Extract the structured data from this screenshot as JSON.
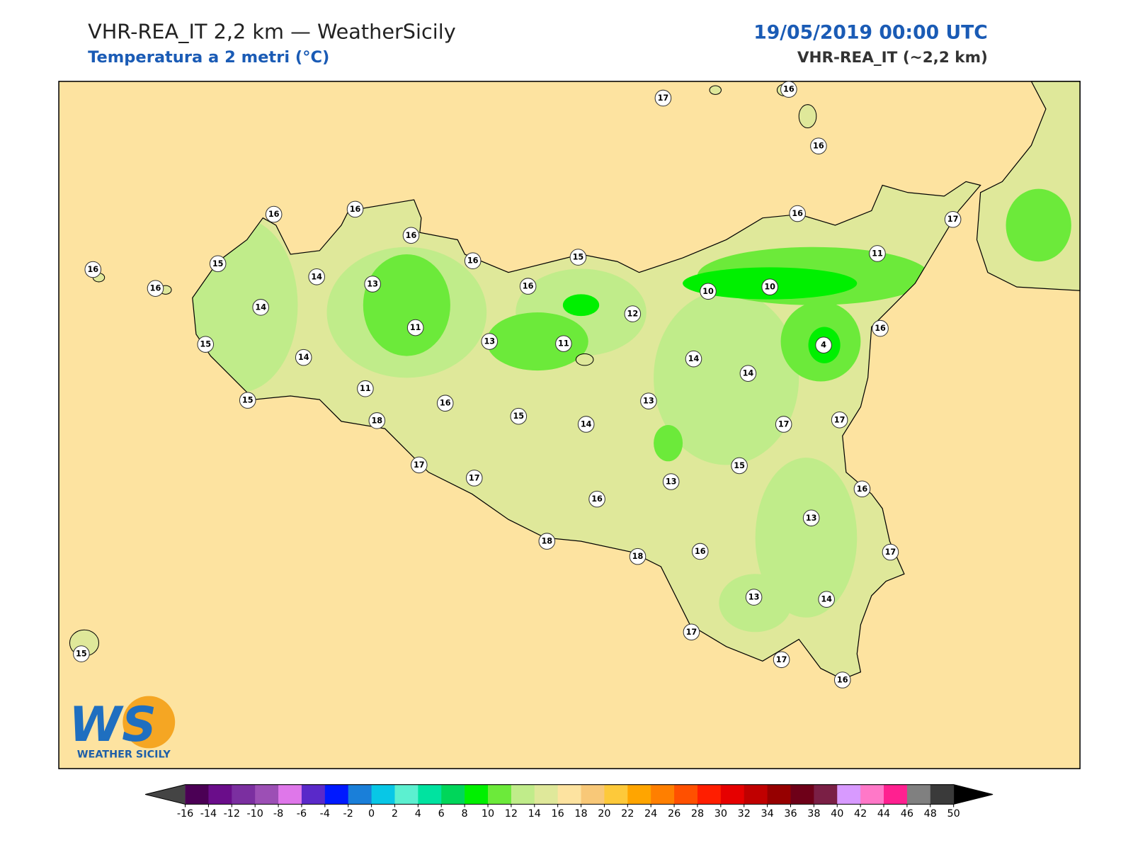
{
  "header": {
    "title": "VHR-REA_IT 2,2 km — WeatherSicily",
    "subtitle": "Temperatura a 2 metri (°C)",
    "datetime": "19/05/2019 00:00 UTC",
    "model": "VHR-REA_IT (~2,2 km)"
  },
  "logo": {
    "text": "WS",
    "caption": "WEATHER SICILY"
  },
  "stations": [
    17,
    16,
    16,
    16,
    16,
    16,
    16,
    15,
    16,
    14,
    13,
    16,
    16,
    15,
    16,
    17,
    11,
    10,
    10,
    12,
    14,
    11,
    13,
    11,
    16,
    4,
    15,
    14,
    14,
    14,
    11,
    16,
    13,
    15,
    14,
    17,
    17,
    15,
    18,
    17,
    17,
    15,
    13,
    16,
    16,
    13,
    18,
    18,
    16,
    17,
    13,
    14,
    17,
    17,
    16,
    15
  ],
  "colorbar": {
    "ticks": [
      -16,
      -14,
      -12,
      -10,
      -8,
      -6,
      -4,
      -2,
      0,
      2,
      4,
      6,
      8,
      10,
      12,
      14,
      16,
      18,
      20,
      22,
      24,
      26,
      28,
      30,
      32,
      34,
      36,
      38,
      40,
      42,
      44,
      46,
      48,
      50
    ],
    "colors": [
      "#4b0055",
      "#6a0d8a",
      "#7b2fa0",
      "#9c4fb5",
      "#df77ea",
      "#5a29c9",
      "#0019ff",
      "#1a7fd9",
      "#08c7e6",
      "#5cf0d0",
      "#00e3a0",
      "#00d65a",
      "#00f000",
      "#6cea3a",
      "#c0ec8a",
      "#dfe89a",
      "#fde3a0",
      "#f8c878",
      "#fdc93a",
      "#ffa500",
      "#ff7f00",
      "#ff5000",
      "#ff1e00",
      "#e60000",
      "#c00000",
      "#960000",
      "#6e0018",
      "#7a1f45",
      "#d89aff",
      "#ff78c8",
      "#ff2090",
      "#808080",
      "#3a3a3a"
    ],
    "under_color": "#444444",
    "over_color": "#000000"
  }
}
